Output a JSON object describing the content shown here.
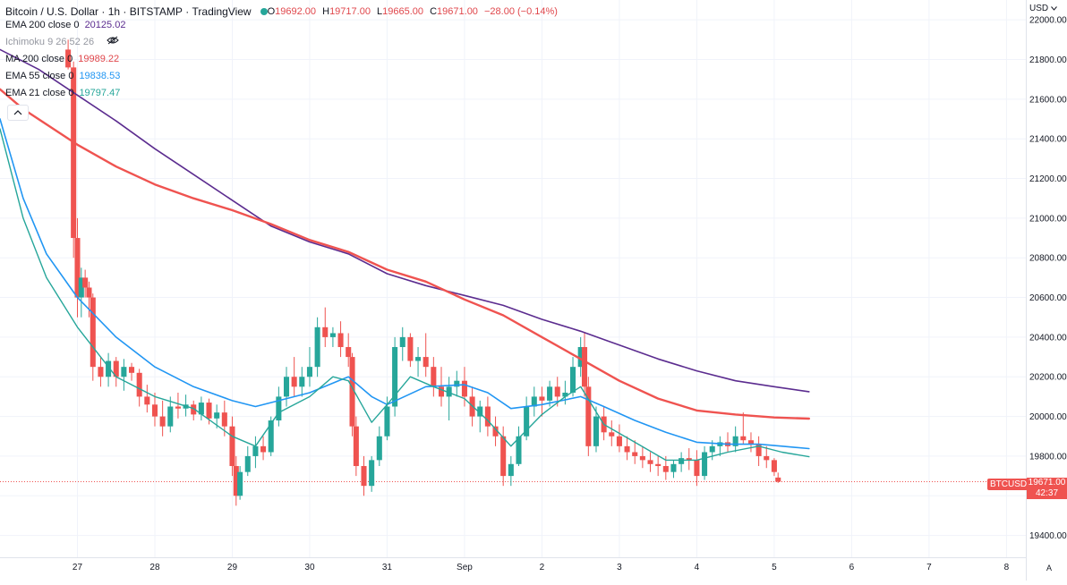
{
  "header": {
    "symbol": "Bitcoin / U.S. Dollar",
    "interval": "1h",
    "exchange": "BITSTAMP",
    "source": "TradingView",
    "open_label": "O",
    "open": "19692.00",
    "high_label": "H",
    "high": "19717.00",
    "low_label": "L",
    "low": "19665.00",
    "close_label": "C",
    "close": "19671.00",
    "change": "−28.00 (−0.14%)",
    "status_color": "#26a69a"
  },
  "indicators": [
    {
      "name": "EMA 200 close 0",
      "value": "20125.02",
      "color": "#5b2c8f"
    },
    {
      "name": "Ichimoku 9 26 52 26",
      "value": "",
      "color": "#9598a1"
    },
    {
      "name": "MA 200 close 0",
      "value": "19989.22",
      "color": "#e0474c"
    },
    {
      "name": "EMA 55 close 0",
      "value": "19838.53",
      "color": "#2196f3"
    },
    {
      "name": "EMA 21 close 0",
      "value": "19797.47",
      "color": "#26a69a"
    }
  ],
  "price_axis": {
    "currency": "USD",
    "ticks": [
      "22000.00",
      "21800.00",
      "21600.00",
      "21400.00",
      "21200.00",
      "21000.00",
      "20800.00",
      "20600.00",
      "20400.00",
      "20200.00",
      "20000.00",
      "19800.00",
      "19600.00",
      "19400.00"
    ],
    "last_price": "19671.00",
    "countdown": "42:37",
    "ticker": "BTCUSD"
  },
  "time_axis": {
    "labels": [
      "27",
      "28",
      "29",
      "30",
      "31",
      "Sep",
      "2",
      "3",
      "4",
      "5",
      "6",
      "7",
      "8"
    ],
    "auto_label": "A"
  },
  "chart_data": {
    "type": "candlestick",
    "title": "Bitcoin / U.S. Dollar",
    "interval": "1h",
    "y_range": [
      19290,
      22100
    ],
    "x_axis": {
      "first_visible_day": 26,
      "days_visible": 13.25
    },
    "colors": {
      "up": "#26a69a",
      "down": "#ef5350"
    },
    "candles": [
      [
        26.88,
        21850,
        21900,
        21750,
        21760
      ],
      [
        26.95,
        21760,
        21790,
        20800,
        20900
      ],
      [
        27.0,
        20900,
        21000,
        20500,
        20600
      ],
      [
        27.05,
        20600,
        20750,
        20500,
        20700
      ],
      [
        27.1,
        20700,
        20740,
        20600,
        20650
      ],
      [
        27.15,
        20650,
        20680,
        20500,
        20600
      ],
      [
        27.2,
        20600,
        20620,
        20180,
        20250
      ],
      [
        27.3,
        20250,
        20300,
        20150,
        20200
      ],
      [
        27.4,
        20200,
        20320,
        20150,
        20280
      ],
      [
        27.5,
        20280,
        20300,
        20150,
        20200
      ],
      [
        27.6,
        20200,
        20290,
        20130,
        20250
      ],
      [
        27.7,
        20250,
        20270,
        20180,
        20220
      ],
      [
        27.8,
        20220,
        20240,
        20050,
        20100
      ],
      [
        27.9,
        20100,
        20160,
        20020,
        20060
      ],
      [
        28.0,
        20060,
        20120,
        19950,
        20000
      ],
      [
        28.1,
        20000,
        20080,
        19900,
        19950
      ],
      [
        28.2,
        19950,
        20100,
        19920,
        20050
      ],
      [
        28.3,
        20050,
        20120,
        19990,
        20040
      ],
      [
        28.4,
        20040,
        20110,
        20000,
        20060
      ],
      [
        28.5,
        20060,
        20080,
        19980,
        20010
      ],
      [
        28.6,
        20010,
        20100,
        19980,
        20070
      ],
      [
        28.7,
        20070,
        20090,
        19960,
        19990
      ],
      [
        28.8,
        19990,
        20060,
        19940,
        20020
      ],
      [
        28.9,
        20020,
        20080,
        19900,
        19950
      ],
      [
        29.0,
        19950,
        20000,
        19700,
        19750
      ],
      [
        29.05,
        19750,
        19800,
        19550,
        19600
      ],
      [
        29.1,
        19600,
        19750,
        19580,
        19720
      ],
      [
        29.2,
        19720,
        19850,
        19700,
        19800
      ],
      [
        29.3,
        19800,
        19900,
        19740,
        19850
      ],
      [
        29.4,
        19850,
        19900,
        19780,
        19820
      ],
      [
        29.5,
        19820,
        20000,
        19800,
        19980
      ],
      [
        29.6,
        19980,
        20150,
        19950,
        20100
      ],
      [
        29.7,
        20100,
        20250,
        20050,
        20200
      ],
      [
        29.8,
        20200,
        20300,
        20100,
        20150
      ],
      [
        29.9,
        20150,
        20250,
        20100,
        20200
      ],
      [
        30.0,
        20200,
        20350,
        20150,
        20250
      ],
      [
        30.1,
        20250,
        20500,
        20200,
        20450
      ],
      [
        30.2,
        20450,
        20550,
        20350,
        20400
      ],
      [
        30.3,
        20400,
        20450,
        20350,
        20420
      ],
      [
        30.4,
        20420,
        20480,
        20300,
        20350
      ],
      [
        30.5,
        20350,
        20420,
        20250,
        20300
      ],
      [
        30.55,
        20300,
        20320,
        19900,
        19950
      ],
      [
        30.6,
        19950,
        20000,
        19700,
        19750
      ],
      [
        30.7,
        19750,
        19800,
        19600,
        19650
      ],
      [
        30.8,
        19650,
        19800,
        19620,
        19780
      ],
      [
        30.9,
        19780,
        19950,
        19750,
        19900
      ],
      [
        31.0,
        19900,
        20100,
        19880,
        20050
      ],
      [
        31.1,
        20050,
        20400,
        20000,
        20350
      ],
      [
        31.2,
        20350,
        20450,
        20280,
        20400
      ],
      [
        31.3,
        20400,
        20420,
        20250,
        20280
      ],
      [
        31.4,
        20280,
        20350,
        20200,
        20300
      ],
      [
        31.5,
        20300,
        20420,
        20200,
        20250
      ],
      [
        31.6,
        20250,
        20300,
        20100,
        20150
      ],
      [
        31.7,
        20150,
        20250,
        20050,
        20100
      ],
      [
        31.8,
        20100,
        20200,
        19980,
        20150
      ],
      [
        31.9,
        20150,
        20230,
        20100,
        20180
      ],
      [
        32.0,
        20180,
        20250,
        20050,
        20100
      ],
      [
        32.1,
        20100,
        20150,
        19950,
        20000
      ],
      [
        32.2,
        20000,
        20080,
        19920,
        20050
      ],
      [
        32.3,
        20050,
        20100,
        19900,
        19950
      ],
      [
        32.4,
        19950,
        20000,
        19850,
        19900
      ],
      [
        32.5,
        19900,
        19950,
        19650,
        19700
      ],
      [
        32.6,
        19700,
        19800,
        19650,
        19760
      ],
      [
        32.7,
        19760,
        19950,
        19750,
        19900
      ],
      [
        32.8,
        19900,
        20100,
        19880,
        20050
      ],
      [
        32.9,
        20050,
        20150,
        20000,
        20100
      ],
      [
        33.0,
        20100,
        20150,
        20000,
        20080
      ],
      [
        33.1,
        20080,
        20180,
        20050,
        20150
      ],
      [
        33.2,
        20150,
        20200,
        20050,
        20100
      ],
      [
        33.3,
        20100,
        20180,
        20060,
        20120
      ],
      [
        33.4,
        20120,
        20300,
        20100,
        20250
      ],
      [
        33.5,
        20250,
        20400,
        20200,
        20350
      ],
      [
        33.55,
        20350,
        20420,
        20100,
        20150
      ],
      [
        33.6,
        20150,
        20200,
        19800,
        19850
      ],
      [
        33.7,
        19850,
        20050,
        19820,
        20000
      ],
      [
        33.8,
        20000,
        20050,
        19880,
        19920
      ],
      [
        33.9,
        19920,
        19980,
        19850,
        19900
      ],
      [
        34.0,
        19900,
        19960,
        19820,
        19850
      ],
      [
        34.1,
        19850,
        19900,
        19780,
        19820
      ],
      [
        34.2,
        19820,
        19880,
        19760,
        19800
      ],
      [
        34.3,
        19800,
        19850,
        19740,
        19780
      ],
      [
        34.4,
        19780,
        19820,
        19720,
        19760
      ],
      [
        34.5,
        19760,
        19800,
        19700,
        19750
      ],
      [
        34.6,
        19750,
        19800,
        19680,
        19720
      ],
      [
        34.7,
        19720,
        19780,
        19690,
        19760
      ],
      [
        34.8,
        19760,
        19820,
        19720,
        19790
      ],
      [
        34.9,
        19790,
        19840,
        19730,
        19780
      ],
      [
        35.0,
        19780,
        19830,
        19650,
        19700
      ],
      [
        35.1,
        19700,
        19850,
        19680,
        19820
      ],
      [
        35.2,
        19820,
        19880,
        19780,
        19850
      ],
      [
        35.3,
        19850,
        19900,
        19800,
        19870
      ],
      [
        35.4,
        19870,
        19920,
        19820,
        19850
      ],
      [
        35.5,
        19850,
        19950,
        19820,
        19900
      ],
      [
        35.6,
        19900,
        20020,
        19860,
        19880
      ],
      [
        35.7,
        19880,
        19920,
        19820,
        19860
      ],
      [
        35.8,
        19860,
        19900,
        19750,
        19800
      ],
      [
        35.9,
        19800,
        19850,
        19740,
        19780
      ],
      [
        36.0,
        19780,
        19790,
        19700,
        19720
      ],
      [
        36.05,
        19692,
        19717,
        19665,
        19671
      ]
    ],
    "series": [
      {
        "name": "EMA 200 close 0",
        "color": "#5b2c8f",
        "width": 1.6,
        "x": [
          26.0,
          26.5,
          27.0,
          27.5,
          28.0,
          28.5,
          29.0,
          29.5,
          30.0,
          30.5,
          31.0,
          31.5,
          32.0,
          32.5,
          33.0,
          33.5,
          34.0,
          34.5,
          35.0,
          35.5,
          36.0,
          36.45
        ],
        "y": [
          21850,
          21750,
          21620,
          21490,
          21350,
          21220,
          21090,
          20960,
          20880,
          20820,
          20720,
          20660,
          20610,
          20560,
          20490,
          20430,
          20360,
          20290,
          20230,
          20180,
          20150,
          20125
        ]
      },
      {
        "name": "MA 200 close 0",
        "color": "#ef5350",
        "width": 2.4,
        "x": [
          26.0,
          26.3,
          27.0,
          27.5,
          28.0,
          28.5,
          29.0,
          29.5,
          30.0,
          30.5,
          31.0,
          31.5,
          32.0,
          32.5,
          33.0,
          33.5,
          34.0,
          34.5,
          35.0,
          35.5,
          36.0,
          36.45
        ],
        "y": [
          21650,
          21550,
          21370,
          21260,
          21170,
          21100,
          21040,
          20970,
          20890,
          20830,
          20740,
          20680,
          20590,
          20510,
          20400,
          20290,
          20180,
          20090,
          20030,
          20010,
          19995,
          19989
        ]
      },
      {
        "name": "EMA 55 close 0",
        "color": "#2196f3",
        "width": 1.6,
        "x": [
          26.0,
          26.3,
          26.6,
          27.0,
          27.5,
          28.0,
          28.5,
          29.0,
          29.3,
          29.6,
          30.0,
          30.5,
          30.8,
          31.0,
          31.5,
          32.0,
          32.3,
          32.6,
          33.0,
          33.5,
          33.8,
          34.2,
          34.6,
          35.0,
          35.4,
          35.8,
          36.1,
          36.45
        ],
        "y": [
          21500,
          21100,
          20820,
          20600,
          20400,
          20250,
          20150,
          20080,
          20050,
          20080,
          20120,
          20200,
          20100,
          20060,
          20150,
          20160,
          20120,
          20040,
          20060,
          20100,
          20050,
          19980,
          19920,
          19870,
          19860,
          19860,
          19850,
          19838
        ]
      },
      {
        "name": "EMA 21 close 0",
        "color": "#26a69a",
        "width": 1.4,
        "x": [
          26.0,
          26.3,
          26.6,
          27.0,
          27.5,
          28.0,
          28.5,
          29.0,
          29.3,
          29.6,
          30.0,
          30.3,
          30.5,
          30.8,
          31.0,
          31.3,
          31.6,
          32.0,
          32.3,
          32.6,
          33.0,
          33.3,
          33.5,
          33.8,
          34.2,
          34.6,
          35.0,
          35.4,
          35.8,
          36.1,
          36.45
        ],
        "y": [
          21450,
          21000,
          20700,
          20450,
          20200,
          20100,
          20040,
          19900,
          19850,
          20020,
          20100,
          20200,
          20180,
          19970,
          20060,
          20200,
          20150,
          20090,
          19980,
          19850,
          20010,
          20100,
          20150,
          19960,
          19870,
          19780,
          19780,
          19820,
          19850,
          19820,
          19797
        ]
      }
    ],
    "last_price": 19671
  }
}
